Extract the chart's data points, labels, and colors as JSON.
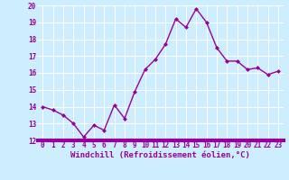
{
  "x": [
    0,
    1,
    2,
    3,
    4,
    5,
    6,
    7,
    8,
    9,
    10,
    11,
    12,
    13,
    14,
    15,
    16,
    17,
    18,
    19,
    20,
    21,
    22,
    23
  ],
  "y": [
    14.0,
    13.8,
    13.5,
    13.0,
    12.2,
    12.9,
    12.6,
    14.1,
    13.3,
    14.9,
    16.2,
    16.8,
    17.7,
    19.2,
    18.7,
    19.8,
    19.0,
    17.5,
    16.7,
    16.7,
    16.2,
    16.3,
    15.9,
    16.1
  ],
  "line_color": "#990099",
  "marker": "D",
  "marker_size": 2,
  "bg_color": "#cceeff",
  "grid_color": "#aaccdd",
  "xlabel": "Windchill (Refroidissement éolien,°C)",
  "xlabel_color": "#990099",
  "tick_color": "#990099",
  "label_color": "#990099",
  "ylim": [
    12,
    20
  ],
  "xlim": [
    -0.5,
    23.5
  ],
  "yticks": [
    12,
    13,
    14,
    15,
    16,
    17,
    18,
    19,
    20
  ],
  "xticks": [
    0,
    1,
    2,
    3,
    4,
    5,
    6,
    7,
    8,
    9,
    10,
    11,
    12,
    13,
    14,
    15,
    16,
    17,
    18,
    19,
    20,
    21,
    22,
    23
  ],
  "xtick_labels": [
    "0",
    "1",
    "2",
    "3",
    "4",
    "5",
    "6",
    "7",
    "8",
    "9",
    "10",
    "11",
    "12",
    "13",
    "14",
    "15",
    "16",
    "17",
    "18",
    "19",
    "20",
    "21",
    "22",
    "23"
  ],
  "ytick_labels": [
    "12",
    "13",
    "14",
    "15",
    "16",
    "17",
    "18",
    "19",
    "20"
  ],
  "tick_fontsize": 5.5,
  "xlabel_fontsize": 6.5,
  "linewidth": 1.0,
  "bottom_bar_color": "#990099",
  "bottom_bar_height": 0.012
}
